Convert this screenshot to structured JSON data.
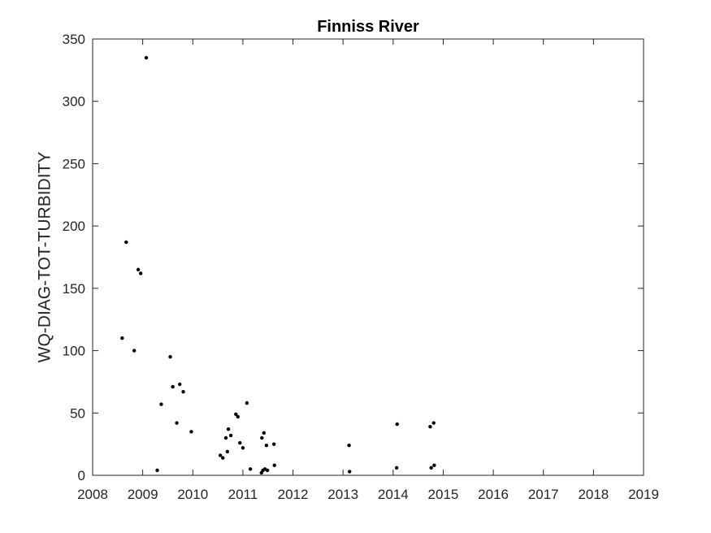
{
  "chart_data": {
    "type": "scatter",
    "title": "Finniss River",
    "xlabel": "",
    "ylabel": "WQ-DIAG-TOT-TURBIDITY",
    "xlim": [
      2008,
      2019
    ],
    "ylim": [
      0,
      350
    ],
    "xticks": [
      2008,
      2009,
      2010,
      2011,
      2012,
      2013,
      2014,
      2015,
      2016,
      2017,
      2018,
      2019
    ],
    "yticks": [
      0,
      50,
      100,
      150,
      200,
      250,
      300,
      350
    ],
    "grid": false,
    "legend": "none",
    "series": [
      {
        "marker_color": "#000000",
        "points": [
          [
            2008.59,
            110
          ],
          [
            2008.67,
            187
          ],
          [
            2008.83,
            100
          ],
          [
            2008.91,
            165
          ],
          [
            2008.96,
            162
          ],
          [
            2009.07,
            335
          ],
          [
            2009.29,
            4
          ],
          [
            2009.37,
            57
          ],
          [
            2009.55,
            95
          ],
          [
            2009.6,
            71
          ],
          [
            2009.68,
            42
          ],
          [
            2009.74,
            73
          ],
          [
            2009.81,
            67
          ],
          [
            2009.97,
            35
          ],
          [
            2010.55,
            16
          ],
          [
            2010.6,
            14
          ],
          [
            2010.66,
            30
          ],
          [
            2010.69,
            19
          ],
          [
            2010.71,
            37
          ],
          [
            2010.76,
            32
          ],
          [
            2010.86,
            49
          ],
          [
            2010.9,
            47
          ],
          [
            2010.94,
            26
          ],
          [
            2011.0,
            22
          ],
          [
            2011.08,
            58
          ],
          [
            2011.15,
            5
          ],
          [
            2011.37,
            2
          ],
          [
            2011.38,
            30
          ],
          [
            2011.4,
            4
          ],
          [
            2011.42,
            34
          ],
          [
            2011.44,
            5
          ],
          [
            2011.47,
            24
          ],
          [
            2011.49,
            4
          ],
          [
            2011.62,
            25
          ],
          [
            2011.63,
            8
          ],
          [
            2013.12,
            24
          ],
          [
            2013.13,
            3
          ],
          [
            2014.07,
            6
          ],
          [
            2014.08,
            41
          ],
          [
            2014.74,
            39
          ],
          [
            2014.76,
            6
          ],
          [
            2014.81,
            42
          ],
          [
            2014.82,
            8
          ]
        ]
      }
    ]
  }
}
